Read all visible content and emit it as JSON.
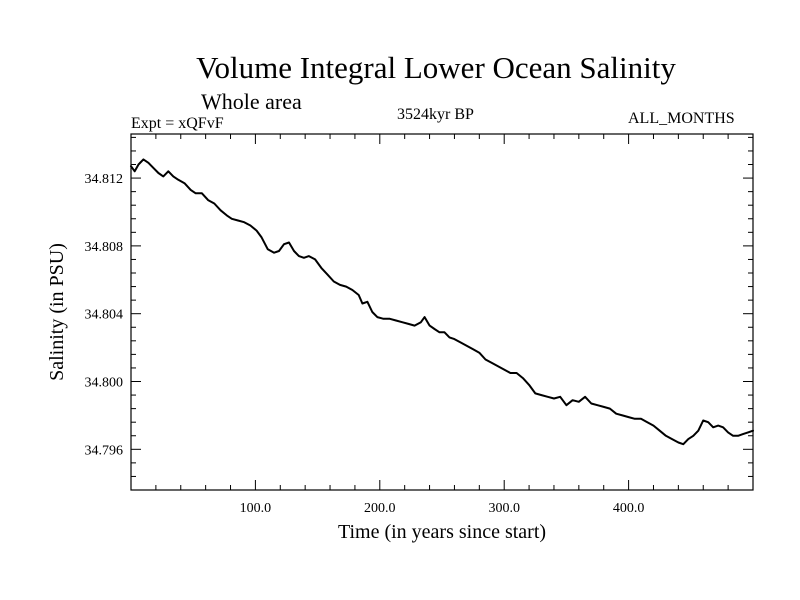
{
  "chart_data": {
    "type": "line",
    "title": "Volume Integral Lower Ocean Salinity",
    "subtitle": "Whole area",
    "annotations": {
      "experiment": "Expt = xQFvF",
      "date": "3524kyr BP",
      "months": "ALL_MONTHS"
    },
    "xlabel": "Time (in years since start)",
    "ylabel": "Salinity (in PSU)",
    "xlim": [
      0,
      500
    ],
    "ylim": [
      34.7936,
      34.8146
    ],
    "xticks": [
      100,
      200,
      300,
      400
    ],
    "xtick_labels": [
      "100.0",
      "200.0",
      "300.0",
      "400.0"
    ],
    "yticks": [
      34.796,
      34.8,
      34.804,
      34.808,
      34.812
    ],
    "ytick_labels": [
      "34.796",
      "34.800",
      "34.804",
      "34.808",
      "34.812"
    ],
    "grid": false,
    "series": [
      {
        "name": "Salinity",
        "color": "#000000",
        "points": [
          [
            0,
            34.8127
          ],
          [
            3,
            34.8124
          ],
          [
            6,
            34.8128
          ],
          [
            10,
            34.8131
          ],
          [
            14,
            34.8129
          ],
          [
            18,
            34.8126
          ],
          [
            22,
            34.8123
          ],
          [
            26,
            34.8121
          ],
          [
            30,
            34.8124
          ],
          [
            34,
            34.8121
          ],
          [
            38,
            34.8119
          ],
          [
            43,
            34.8117
          ],
          [
            48,
            34.8113
          ],
          [
            52,
            34.8111
          ],
          [
            57,
            34.8111
          ],
          [
            62,
            34.8107
          ],
          [
            67,
            34.8105
          ],
          [
            72,
            34.8101
          ],
          [
            77,
            34.8098
          ],
          [
            81,
            34.8096
          ],
          [
            86,
            34.8095
          ],
          [
            91,
            34.8094
          ],
          [
            96,
            34.8092
          ],
          [
            101,
            34.8089
          ],
          [
            105,
            34.8085
          ],
          [
            110,
            34.8078
          ],
          [
            115,
            34.8076
          ],
          [
            119,
            34.8077
          ],
          [
            123,
            34.8081
          ],
          [
            127,
            34.8082
          ],
          [
            131,
            34.8077
          ],
          [
            135,
            34.8074
          ],
          [
            139,
            34.8073
          ],
          [
            143,
            34.8074
          ],
          [
            148,
            34.8072
          ],
          [
            153,
            34.8067
          ],
          [
            158,
            34.8063
          ],
          [
            163,
            34.8059
          ],
          [
            168,
            34.8057
          ],
          [
            173,
            34.8056
          ],
          [
            178,
            34.8054
          ],
          [
            183,
            34.8051
          ],
          [
            186,
            34.8046
          ],
          [
            190,
            34.8047
          ],
          [
            194,
            34.8041
          ],
          [
            198,
            34.8038
          ],
          [
            203,
            34.8037
          ],
          [
            208,
            34.8037
          ],
          [
            213,
            34.8036
          ],
          [
            218,
            34.8035
          ],
          [
            223,
            34.8034
          ],
          [
            228,
            34.8033
          ],
          [
            233,
            34.8035
          ],
          [
            236,
            34.8038
          ],
          [
            240,
            34.8033
          ],
          [
            244,
            34.8031
          ],
          [
            248,
            34.8029
          ],
          [
            252,
            34.8029
          ],
          [
            256,
            34.8026
          ],
          [
            260,
            34.8025
          ],
          [
            265,
            34.8023
          ],
          [
            270,
            34.8021
          ],
          [
            275,
            34.8019
          ],
          [
            280,
            34.8017
          ],
          [
            285,
            34.8013
          ],
          [
            290,
            34.8011
          ],
          [
            295,
            34.8009
          ],
          [
            300,
            34.8007
          ],
          [
            305,
            34.8005
          ],
          [
            310,
            34.8005
          ],
          [
            315,
            34.8002
          ],
          [
            320,
            34.7998
          ],
          [
            325,
            34.7993
          ],
          [
            330,
            34.7992
          ],
          [
            335,
            34.7991
          ],
          [
            340,
            34.799
          ],
          [
            345,
            34.7991
          ],
          [
            350,
            34.7986
          ],
          [
            355,
            34.7989
          ],
          [
            360,
            34.7988
          ],
          [
            365,
            34.7991
          ],
          [
            370,
            34.7987
          ],
          [
            375,
            34.7986
          ],
          [
            380,
            34.7985
          ],
          [
            385,
            34.7984
          ],
          [
            390,
            34.7981
          ],
          [
            395,
            34.798
          ],
          [
            400,
            34.7979
          ],
          [
            405,
            34.7978
          ],
          [
            410,
            34.7978
          ],
          [
            415,
            34.7976
          ],
          [
            420,
            34.7974
          ],
          [
            425,
            34.7971
          ],
          [
            430,
            34.7968
          ],
          [
            435,
            34.7966
          ],
          [
            440,
            34.7964
          ],
          [
            444,
            34.7963
          ],
          [
            448,
            34.7966
          ],
          [
            452,
            34.7968
          ],
          [
            456,
            34.7971
          ],
          [
            460,
            34.7977
          ],
          [
            464,
            34.7976
          ],
          [
            468,
            34.7973
          ],
          [
            472,
            34.7974
          ],
          [
            476,
            34.7973
          ],
          [
            480,
            34.797
          ],
          [
            484,
            34.7968
          ],
          [
            488,
            34.7968
          ],
          [
            492,
            34.7969
          ],
          [
            496,
            34.797
          ],
          [
            500,
            34.7971
          ]
        ]
      }
    ]
  }
}
